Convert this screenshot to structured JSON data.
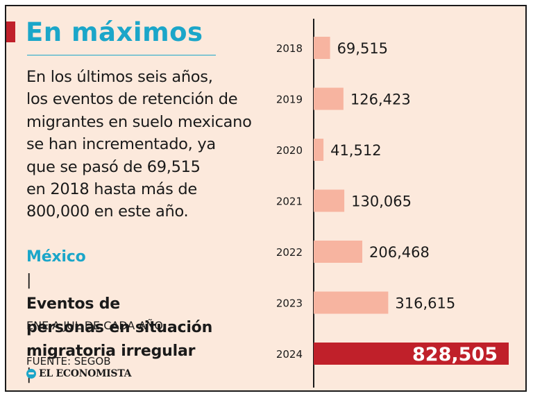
{
  "headline": "En máximos",
  "description": [
    "En los últimos seis años,",
    "los eventos de retención de",
    "migrantes en suelo mexicano",
    "se han incrementado, ya",
    "que se pasó de 69,515",
    "en 2018 hasta más de",
    "800,000 en este año."
  ],
  "chart_heading": {
    "country": "México",
    "separator": "|",
    "title_line1": "Eventos de",
    "title_line2": "personas en situación",
    "title_line3": "migratoria irregular",
    "title_line3_sep": "|",
    "period": "ENE A JUL DE CADA AÑO"
  },
  "source": "FUENTE: SEGOB",
  "brand": "EL ECONOMISTA",
  "colors": {
    "background": "#fce9dc",
    "accent": "#1ba6c9",
    "bar": "#f7b4a0",
    "highlight_bar": "#c0202a",
    "text": "#1a1a1a"
  },
  "chart_data": {
    "type": "bar",
    "orientation": "horizontal",
    "title": "Eventos de personas en situación migratoria irregular",
    "subtitle": "ENE A JUL DE CADA AÑO",
    "categories": [
      "2018",
      "2019",
      "2020",
      "2021",
      "2022",
      "2023",
      "2024"
    ],
    "values": [
      69515,
      126423,
      41512,
      130065,
      206468,
      316615,
      828505
    ],
    "labels": [
      "69,515",
      "126,423",
      "41,512",
      "130,065",
      "206,468",
      "316,615",
      "828,505"
    ],
    "highlight": "2024",
    "xlim": [
      0,
      828505
    ],
    "grid": false
  }
}
